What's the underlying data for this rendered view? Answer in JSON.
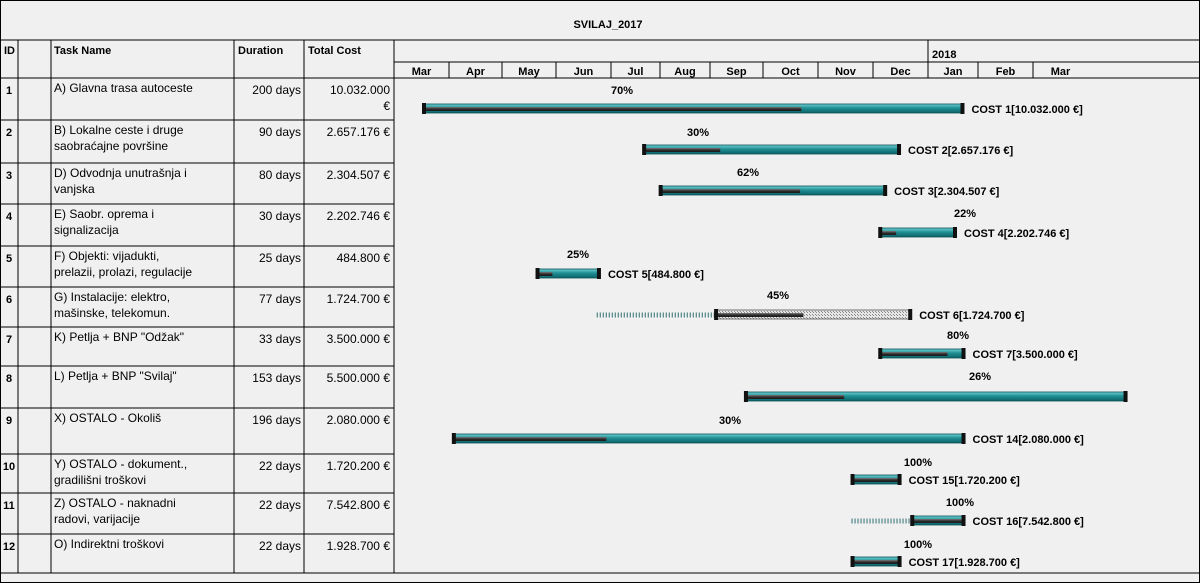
{
  "title": "SVILAJ_2017",
  "columns": {
    "id": "ID",
    "name": "Task Name",
    "duration": "Duration",
    "cost": "Total Cost"
  },
  "timeline": {
    "year_label": "2018",
    "months": [
      "Mar",
      "Apr",
      "May",
      "Jun",
      "Jul",
      "Aug",
      "Sep",
      "Oct",
      "Nov",
      "Dec",
      "Jan",
      "Feb",
      "Mar"
    ]
  },
  "colors": {
    "bar": "#1f8f94",
    "bar_light": "#39b6bb",
    "progress": "#3b3b3b",
    "grid": "#000000",
    "bg": "#f0f0f0",
    "dots": "#2f6f72"
  },
  "tasks": [
    {
      "id": "1",
      "name": [
        "A) Glavna trasa autoceste",
        ""
      ],
      "duration": "200 days",
      "cost": [
        "10.032.000",
        "€"
      ],
      "pct": "70%",
      "cost_label": "COST 1[10.032.000 €]",
      "bar": {
        "start": 0.0,
        "end": 10.14,
        "progress": 0.7
      },
      "style": "solid"
    },
    {
      "id": "2",
      "name": [
        "B)  Lokalne ceste i druge",
        "saobraćajne površine"
      ],
      "duration": "90 days",
      "cost": [
        "2.657.176 €",
        ""
      ],
      "pct": "30%",
      "cost_label": "COST 2[2.657.176 €]",
      "bar": {
        "start": 4.13,
        "end": 8.95,
        "progress": 0.3
      },
      "style": "solid"
    },
    {
      "id": "3",
      "name": [
        "D) Odvodnja unutrašnja i",
        "vanjska"
      ],
      "duration": "80 days",
      "cost": [
        "2.304.507 €",
        ""
      ],
      "pct": "62%",
      "cost_label": "COST 3[2.304.507 €]",
      "bar": {
        "start": 4.44,
        "end": 8.69,
        "progress": 0.62
      },
      "style": "solid"
    },
    {
      "id": "4",
      "name": [
        "E) Saobr. oprema i",
        "signalizacija"
      ],
      "duration": "30 days",
      "cost": [
        "2.202.746 €",
        ""
      ],
      "pct": "22%",
      "cost_label": "COST 4[2.202.746 €]",
      "bar": {
        "start": 8.56,
        "end": 10.0,
        "progress": 0.22
      },
      "style": "solid"
    },
    {
      "id": "5",
      "name": [
        "F) Objekti: vijadukti,",
        "prelazii, prolazi, regulacije"
      ],
      "duration": "25 days",
      "cost": [
        "484.800 €",
        ""
      ],
      "pct": "25%",
      "cost_label": "COST 5[484.800 €]",
      "bar": {
        "start": 2.13,
        "end": 3.32,
        "progress": 0.25
      },
      "style": "solid"
    },
    {
      "id": "6",
      "name": [
        "G) Instalacije: elektro,",
        "mašinske, telekomun."
      ],
      "duration": "77 days",
      "cost": [
        "1.724.700 €",
        ""
      ],
      "pct": "45%",
      "cost_label": "COST 6[1.724.700 €]",
      "bar": {
        "start": 5.48,
        "end": 9.16,
        "progress": 0.45,
        "dots_start": 3.26
      },
      "style": "hatched"
    },
    {
      "id": "7",
      "name": [
        "K) Petlja + BNP \"Odžak\"",
        ""
      ],
      "duration": "33 days",
      "cost": [
        "3.500.000 €",
        ""
      ],
      "pct": "80%",
      "cost_label": "COST 7[3.500.000 €]",
      "bar": {
        "start": 8.56,
        "end": 10.16,
        "progress": 0.8
      },
      "style": "solid"
    },
    {
      "id": "8",
      "name": [
        "L) Petlja + BNP \"Svilaj\"",
        ""
      ],
      "duration": "153 days",
      "cost": [
        "5.500.000 €",
        ""
      ],
      "pct": "26%",
      "cost_label": "",
      "bar": {
        "start": 6.04,
        "end": 13.2,
        "progress": 0.26
      },
      "style": "solid"
    },
    {
      "id": "9",
      "name": [
        "X) OSTALO - Okoliš",
        ""
      ],
      "duration": "196 days",
      "cost": [
        "2.080.000 €",
        ""
      ],
      "pct": "30%",
      "cost_label": "COST 14[2.080.000 €]",
      "bar": {
        "start": 0.56,
        "end": 10.16,
        "progress": 0.3
      },
      "style": "solid"
    },
    {
      "id": "10",
      "name": [
        "Y) OSTALO - dokument.,",
        "gradilišni troškovi"
      ],
      "duration": "22 days",
      "cost": [
        "1.720.200 €",
        ""
      ],
      "pct": "100%",
      "cost_label": "COST 15[1.720.200 €]",
      "bar": {
        "start": 8.04,
        "end": 8.96,
        "progress": 1.0
      },
      "style": "solid"
    },
    {
      "id": "11",
      "name": [
        "Z) OSTALO - naknadni",
        "radovi, varijacije"
      ],
      "duration": "22 days",
      "cost": [
        "7.542.800 €",
        ""
      ],
      "pct": "100%",
      "cost_label": "COST 16[7.542.800 €]",
      "bar": {
        "start": 9.16,
        "end": 10.16,
        "progress": 1.0,
        "dots_start": 8.04
      },
      "style": "solid"
    },
    {
      "id": "12",
      "name": [
        "O) Indirektni troškovi",
        ""
      ],
      "duration": "22 days",
      "cost": [
        "1.928.700 €",
        ""
      ],
      "pct": "100%",
      "cost_label": "COST 17[1.928.700 €]",
      "bar": {
        "start": 8.04,
        "end": 8.96,
        "progress": 1.0
      },
      "style": "solid"
    }
  ]
}
